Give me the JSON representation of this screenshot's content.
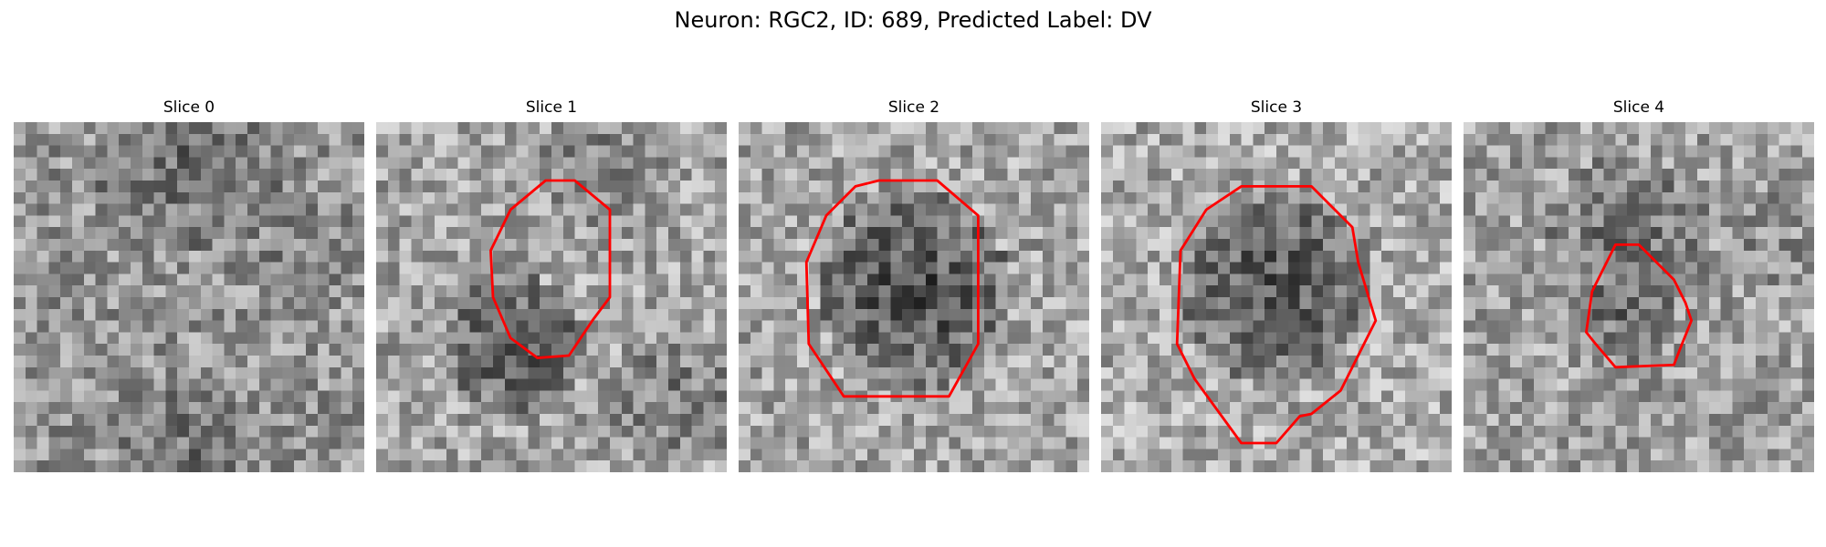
{
  "figure": {
    "title": "Neuron: RGC2, ID: 689, Predicted Label: DV"
  },
  "panels": [
    {
      "title": "Slice 0",
      "has_contour": false
    },
    {
      "title": "Slice 1",
      "has_contour": true
    },
    {
      "title": "Slice 2",
      "has_contour": true
    },
    {
      "title": "Slice 3",
      "has_contour": true
    },
    {
      "title": "Slice 4",
      "has_contour": true
    }
  ],
  "colors": {
    "contour": "#ff0000",
    "background": "#ffffff"
  },
  "image_style": "grayscale pixelated noise patch 30x30 with red ROI contour"
}
